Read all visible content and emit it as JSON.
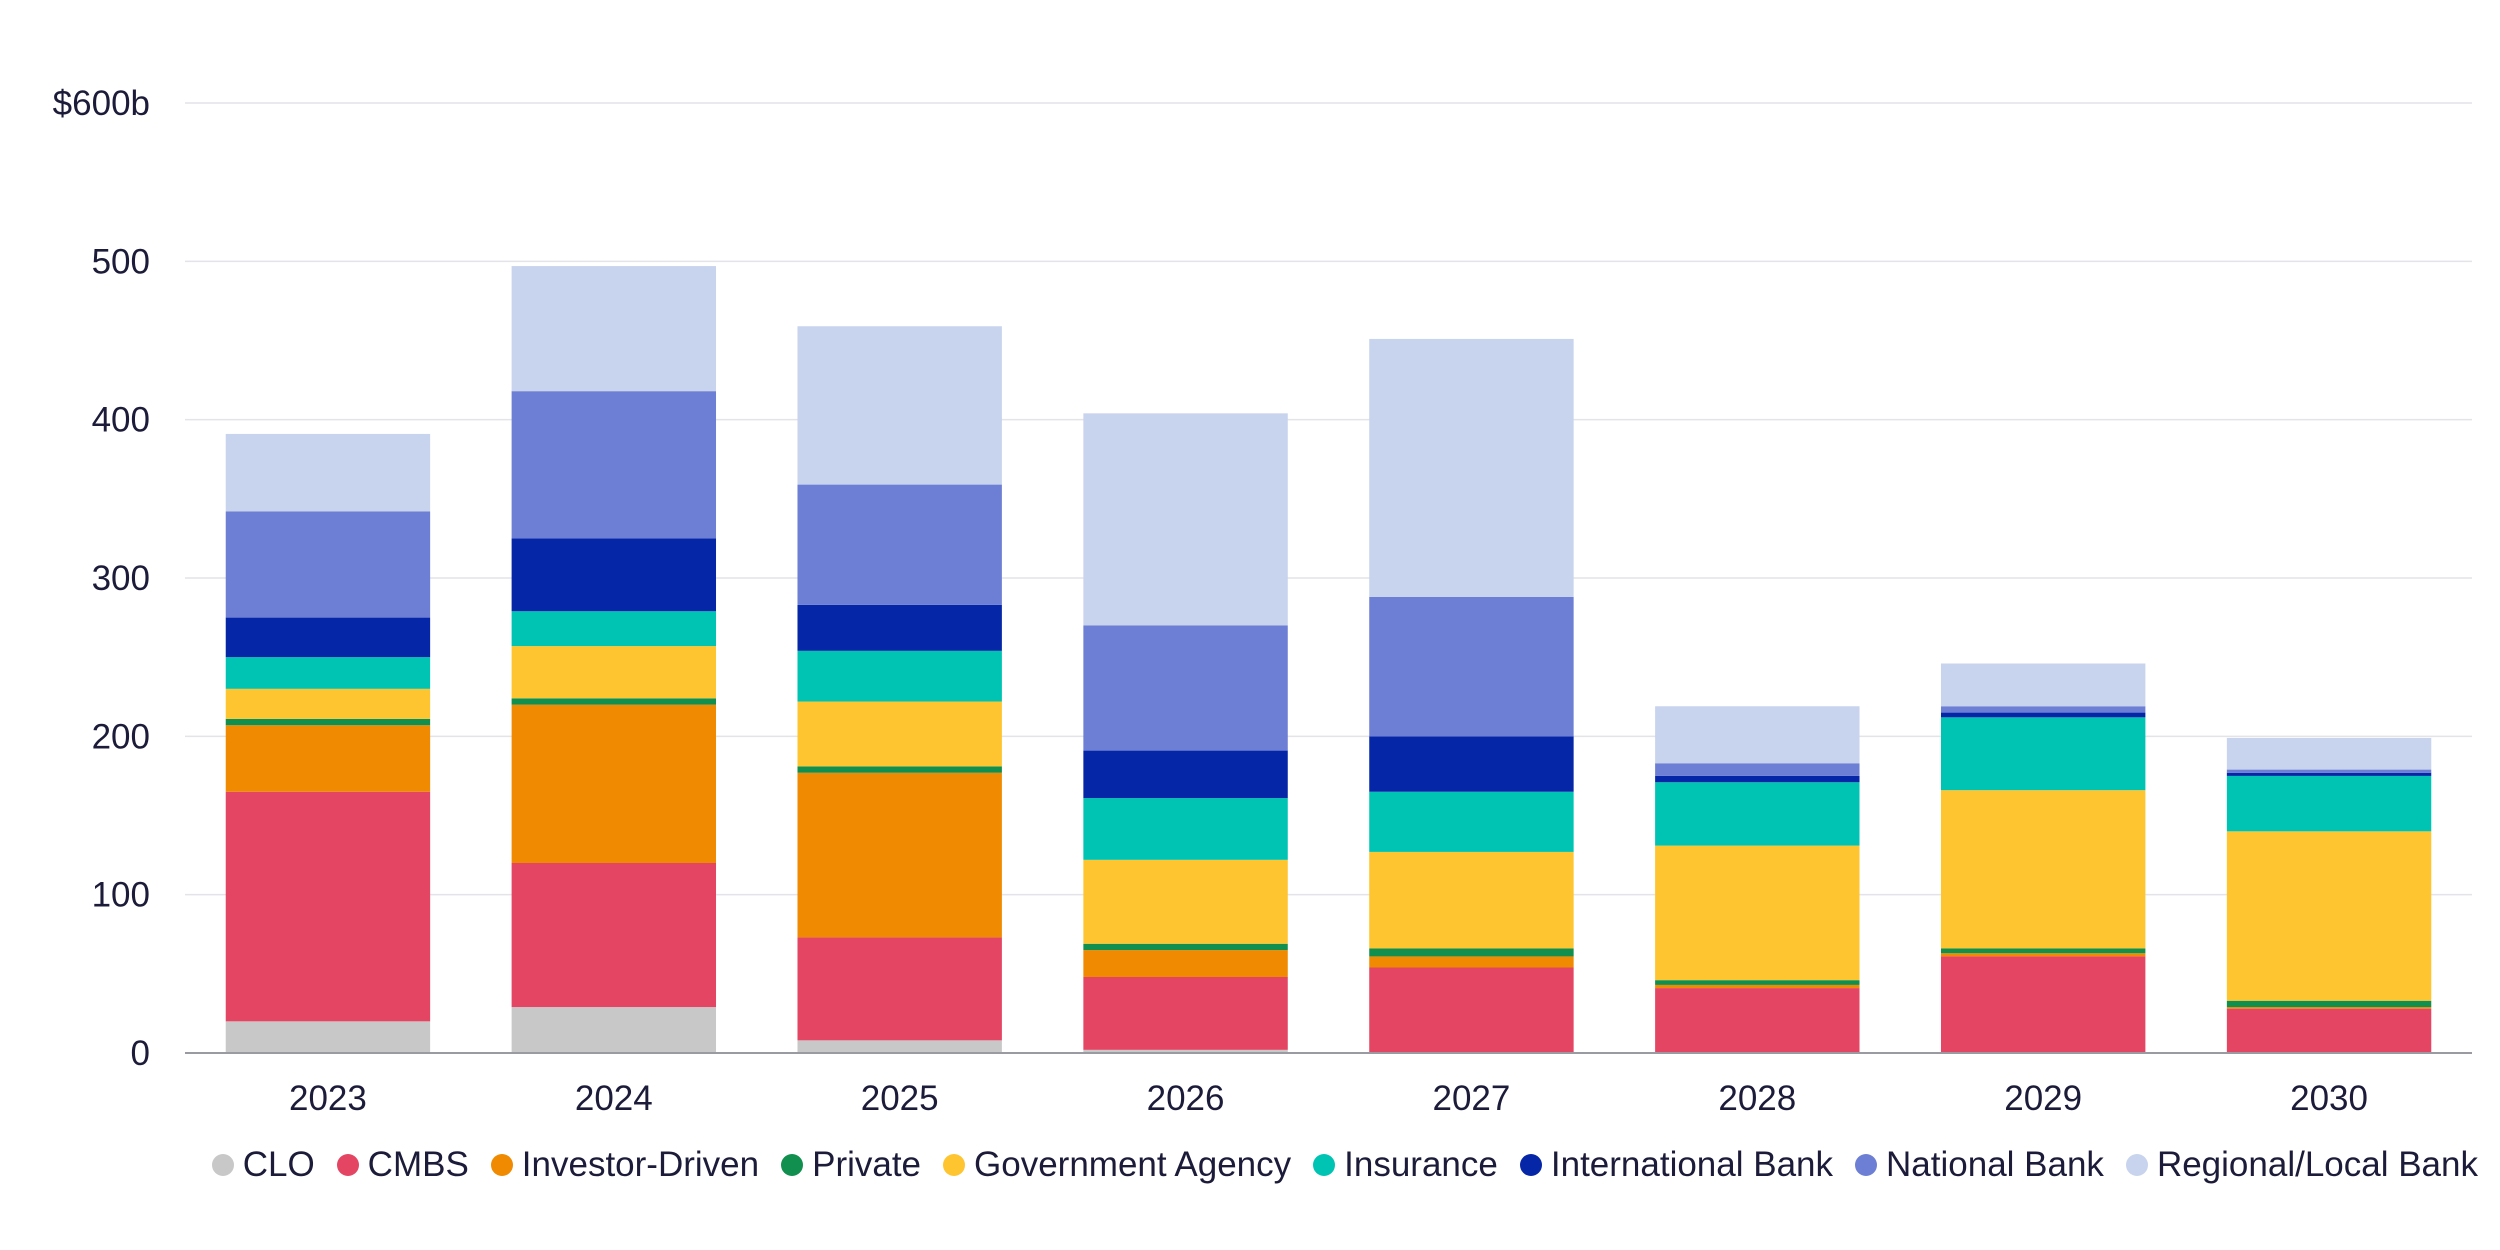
{
  "chart_data": {
    "type": "bar",
    "stacked": true,
    "categories": [
      "2023",
      "2024",
      "2025",
      "2026",
      "2027",
      "2028",
      "2029",
      "2030"
    ],
    "ylim": [
      0,
      600
    ],
    "yticks": [
      "0",
      "100",
      "200",
      "300",
      "400",
      "500",
      "$600b"
    ],
    "ytick_values": [
      0,
      100,
      200,
      300,
      400,
      500,
      600
    ],
    "grid": true,
    "legend_position": "bottom",
    "series": [
      {
        "name": "CLO",
        "color": "#c8c8c8",
        "values": [
          20,
          29,
          8,
          2,
          0,
          0,
          0,
          0
        ]
      },
      {
        "name": "CMBS",
        "color": "#e44563",
        "values": [
          145,
          91,
          65,
          46,
          54,
          41,
          61,
          28
        ]
      },
      {
        "name": "Investor-Driven",
        "color": "#f08a00",
        "values": [
          42,
          100,
          104,
          17,
          7,
          2,
          2,
          1
        ]
      },
      {
        "name": "Private",
        "color": "#118f4e",
        "values": [
          4,
          4,
          4,
          4,
          5,
          3,
          3,
          4
        ]
      },
      {
        "name": "Government Agency",
        "color": "#ffc530",
        "values": [
          19,
          33,
          41,
          53,
          61,
          85,
          100,
          107
        ]
      },
      {
        "name": "Insurance",
        "color": "#00c4b3",
        "values": [
          20,
          22,
          32,
          39,
          38,
          40,
          46,
          35
        ]
      },
      {
        "name": "International Bank",
        "color": "#0626a8",
        "values": [
          25,
          46,
          29,
          30,
          35,
          4,
          3,
          2
        ]
      },
      {
        "name": "National Bank",
        "color": "#6d7fd4",
        "values": [
          67,
          93,
          76,
          79,
          88,
          8,
          4,
          2
        ]
      },
      {
        "name": "Regional/Local Bank",
        "color": "#c8d3ed",
        "values": [
          49,
          79,
          100,
          134,
          163,
          36,
          27,
          20
        ]
      }
    ]
  }
}
